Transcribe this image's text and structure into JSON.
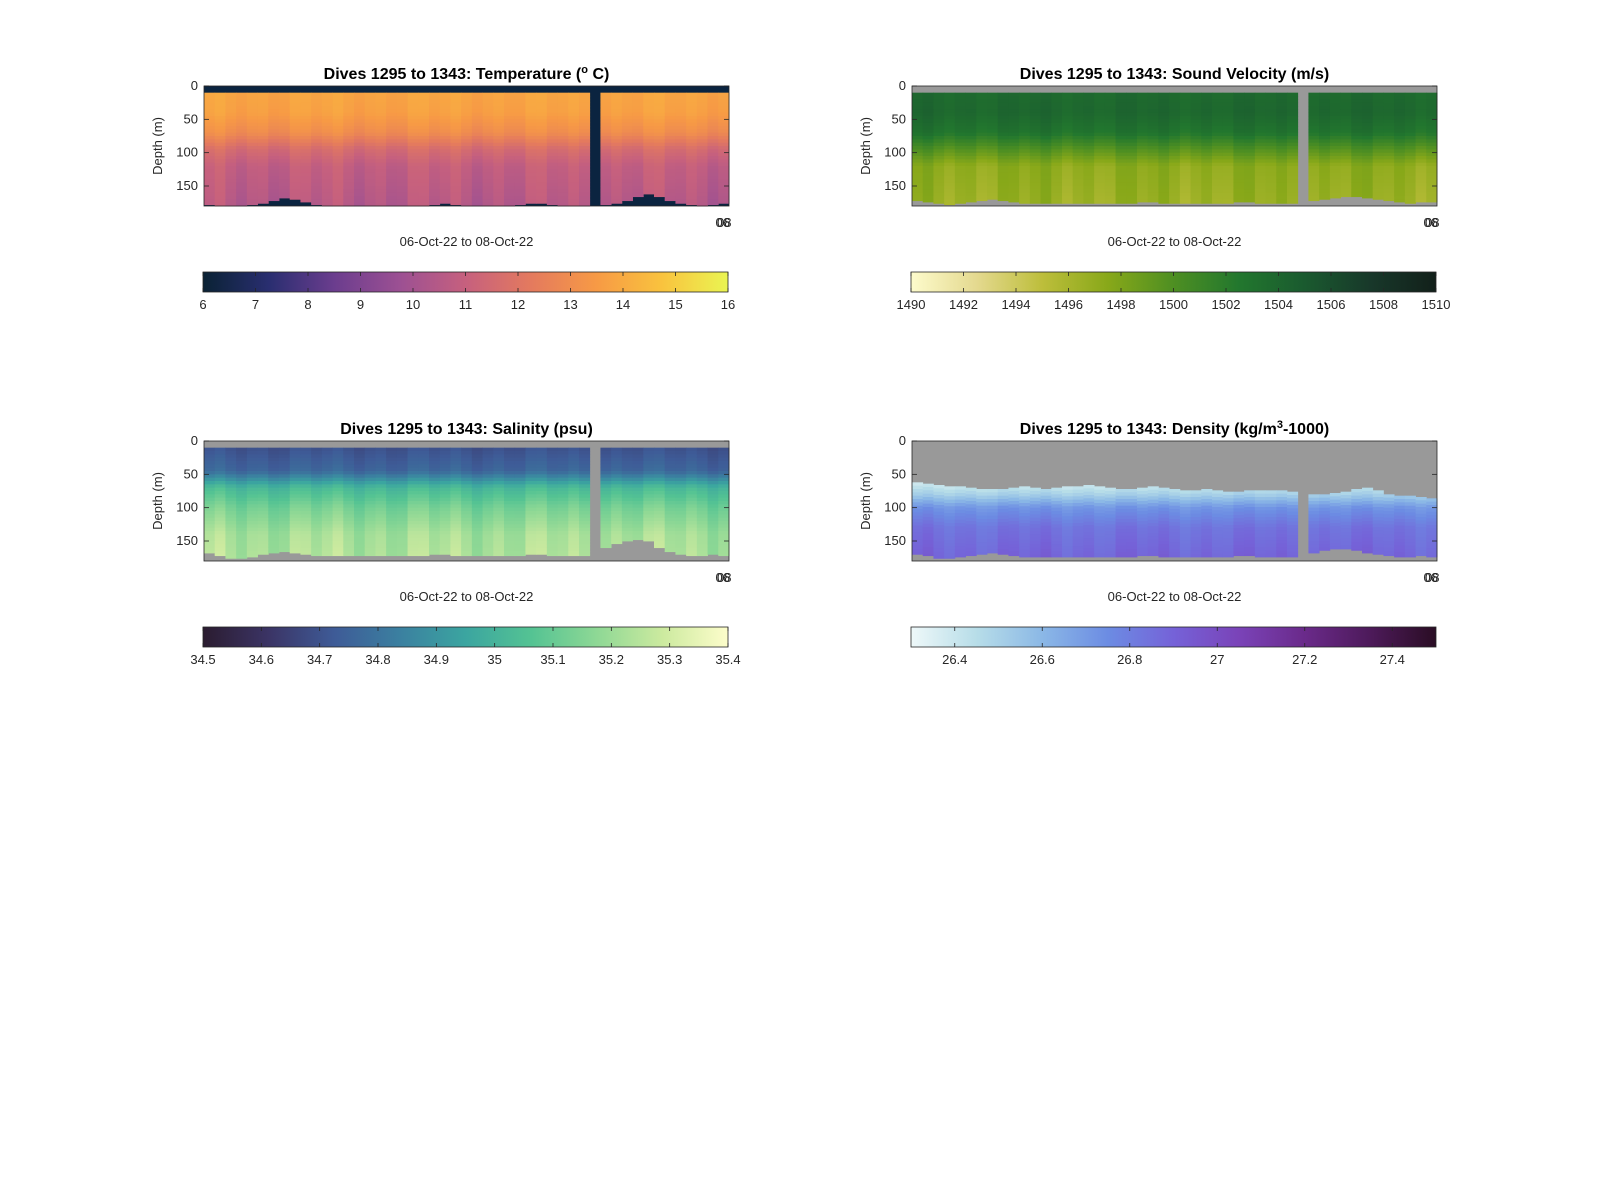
{
  "figure": {
    "background": "#ffffff",
    "nodata_color": "#999999"
  },
  "chart_data": [
    {
      "type": "heatmap",
      "title": "Dives 1295 to 1343: Temperature (° C)",
      "title_parts": [
        "Dives 1295 to 1343: Temperature (",
        "o",
        " C)"
      ],
      "title_super_index": 1,
      "xlabel": "06-Oct-22 to 08-Oct-22",
      "ylabel": "Depth (m)",
      "x_tick_labels": [
        "06",
        "08"
      ],
      "y_ticks": [
        0,
        50,
        100,
        150
      ],
      "ylim": [
        0,
        180
      ],
      "y_reversed": true,
      "grid": false,
      "nodata_color": "#0b2440",
      "colorbar": {
        "min": 6,
        "max": 16,
        "ticks": [
          6,
          7,
          8,
          9,
          10,
          11,
          12,
          13,
          14,
          15,
          16
        ],
        "colors": [
          "#0a2234",
          "#292e70",
          "#6b3d8e",
          "#9c5093",
          "#c6607e",
          "#e47a5e",
          "#f79a45",
          "#f9c33e",
          "#eaf552"
        ]
      },
      "dives": 49,
      "gap_dive_index": 36,
      "surface_depth": 10,
      "bottom_depth": [
        178,
        180,
        180,
        180,
        178,
        176,
        172,
        168,
        170,
        174,
        178,
        180,
        180,
        180,
        180,
        180,
        180,
        180,
        180,
        180,
        180,
        178,
        176,
        178,
        180,
        180,
        180,
        180,
        180,
        178,
        176,
        176,
        178,
        180,
        180,
        180,
        180,
        178,
        176,
        172,
        166,
        162,
        166,
        172,
        176,
        178,
        180,
        178,
        176
      ],
      "profile": [
        [
          0,
          13.9
        ],
        [
          40,
          13.7
        ],
        [
          70,
          13.0
        ],
        [
          95,
          11.6
        ],
        [
          120,
          10.9
        ],
        [
          180,
          10.5
        ]
      ],
      "dive_variation": 0.25
    },
    {
      "type": "heatmap",
      "title": "Dives 1295 to 1343: Sound Velocity (m/s)",
      "title_parts": [
        "Dives 1295 to 1343: Sound Velocity (m/s)"
      ],
      "title_super_index": -1,
      "xlabel": "06-Oct-22 to 08-Oct-22",
      "ylabel": "Depth (m)",
      "x_tick_labels": [
        "06",
        "08"
      ],
      "y_ticks": [
        0,
        50,
        100,
        150
      ],
      "ylim": [
        0,
        180
      ],
      "y_reversed": true,
      "grid": false,
      "nodata_color": "#999999",
      "colorbar": {
        "min": 1490,
        "max": 1510,
        "ticks": [
          1490,
          1492,
          1494,
          1496,
          1498,
          1500,
          1502,
          1504,
          1506,
          1508,
          1510
        ],
        "colors": [
          "#fdfbcc",
          "#e4d98f",
          "#bdbe3b",
          "#88a819",
          "#4e8f22",
          "#22772e",
          "#1a5a2f",
          "#18382a",
          "#12201a"
        ]
      },
      "dives": 49,
      "gap_dive_index": 36,
      "surface_depth": 10,
      "bottom_depth": [
        172,
        174,
        176,
        178,
        176,
        174,
        172,
        170,
        172,
        174,
        176,
        176,
        176,
        176,
        176,
        176,
        176,
        176,
        176,
        176,
        176,
        174,
        174,
        176,
        176,
        176,
        176,
        176,
        176,
        176,
        174,
        174,
        176,
        176,
        176,
        176,
        176,
        172,
        170,
        168,
        166,
        166,
        168,
        170,
        172,
        174,
        176,
        174,
        174
      ],
      "profile": [
        [
          0,
          1503.6
        ],
        [
          40,
          1503.9
        ],
        [
          70,
          1502.8
        ],
        [
          95,
          1499.8
        ],
        [
          120,
          1497.2
        ],
        [
          180,
          1496.6
        ]
      ],
      "dive_variation": 0.5
    },
    {
      "type": "heatmap",
      "title": "Dives 1295 to 1343: Salinity (psu)",
      "title_parts": [
        "Dives 1295 to 1343: Salinity (psu)"
      ],
      "title_super_index": -1,
      "xlabel": "06-Oct-22 to 08-Oct-22",
      "ylabel": "Depth (m)",
      "x_tick_labels": [
        "06",
        "08"
      ],
      "y_ticks": [
        0,
        50,
        100,
        150
      ],
      "ylim": [
        0,
        180
      ],
      "y_reversed": true,
      "grid": false,
      "nodata_color": "#999999",
      "colorbar": {
        "min": 34.5,
        "max": 35.4,
        "ticks": [
          34.5,
          34.6,
          34.7,
          34.8,
          34.9,
          35,
          35.1,
          35.2,
          35.3,
          35.4
        ],
        "colors": [
          "#2b1c30",
          "#3b3465",
          "#3e5b97",
          "#3b80a0",
          "#3ba5a0",
          "#54c393",
          "#8ed895",
          "#ccea9f",
          "#fdfdcb"
        ]
      },
      "dives": 49,
      "gap_dive_index": 36,
      "surface_depth": 10,
      "bottom_depth": [
        168,
        172,
        176,
        176,
        174,
        170,
        168,
        166,
        168,
        170,
        172,
        172,
        172,
        172,
        172,
        172,
        172,
        172,
        172,
        172,
        172,
        170,
        170,
        172,
        172,
        172,
        172,
        172,
        172,
        172,
        170,
        170,
        172,
        172,
        172,
        172,
        172,
        160,
        154,
        150,
        148,
        150,
        160,
        166,
        170,
        172,
        172,
        170,
        172
      ],
      "profile": [
        [
          0,
          34.68
        ],
        [
          45,
          34.76
        ],
        [
          70,
          35.02
        ],
        [
          100,
          35.13
        ],
        [
          140,
          35.22
        ],
        [
          180,
          35.24
        ]
      ],
      "dive_variation": 0.03
    },
    {
      "type": "heatmap",
      "title": "Dives 1295 to 1343: Density (kg/m³-1000)",
      "title_parts": [
        "Dives 1295 to 1343: Density (kg/m",
        "3",
        "-1000)"
      ],
      "title_super_index": 1,
      "xlabel": "06-Oct-22 to 08-Oct-22",
      "ylabel": "Depth (m)",
      "x_tick_labels": [
        "06",
        "08"
      ],
      "y_ticks": [
        0,
        50,
        100,
        150
      ],
      "ylim": [
        0,
        180
      ],
      "y_reversed": true,
      "grid": false,
      "nodata_color": "#999999",
      "colorbar": {
        "min": 26.3,
        "max": 27.5,
        "ticks": [
          26.4,
          26.6,
          26.8,
          27,
          27.2,
          27.4
        ],
        "colors": [
          "#eef8f9",
          "#b7dde8",
          "#8bb8e6",
          "#6c8ce3",
          "#7562d8",
          "#7a43b8",
          "#6a2a8a",
          "#4d1a5a",
          "#2a0d24"
        ]
      },
      "dives": 49,
      "gap_dive_index": 36,
      "surface_start": [
        62,
        64,
        66,
        68,
        68,
        70,
        72,
        72,
        72,
        70,
        68,
        70,
        72,
        70,
        68,
        68,
        66,
        68,
        70,
        72,
        72,
        70,
        68,
        70,
        72,
        74,
        74,
        72,
        74,
        76,
        76,
        74,
        74,
        74,
        74,
        76,
        80,
        80,
        80,
        78,
        76,
        72,
        70,
        74,
        80,
        82,
        82,
        84,
        86
      ],
      "bottom_depth": [
        170,
        172,
        176,
        176,
        174,
        172,
        170,
        168,
        170,
        172,
        174,
        174,
        174,
        174,
        174,
        174,
        174,
        174,
        174,
        174,
        174,
        172,
        172,
        174,
        174,
        174,
        174,
        174,
        174,
        174,
        172,
        172,
        174,
        174,
        174,
        174,
        174,
        168,
        164,
        162,
        162,
        164,
        168,
        170,
        172,
        174,
        174,
        172,
        174
      ],
      "profile": [
        [
          60,
          26.35
        ],
        [
          80,
          26.5
        ],
        [
          100,
          26.72
        ],
        [
          130,
          26.84
        ],
        [
          180,
          26.9
        ]
      ],
      "dive_variation": 0.03
    }
  ]
}
